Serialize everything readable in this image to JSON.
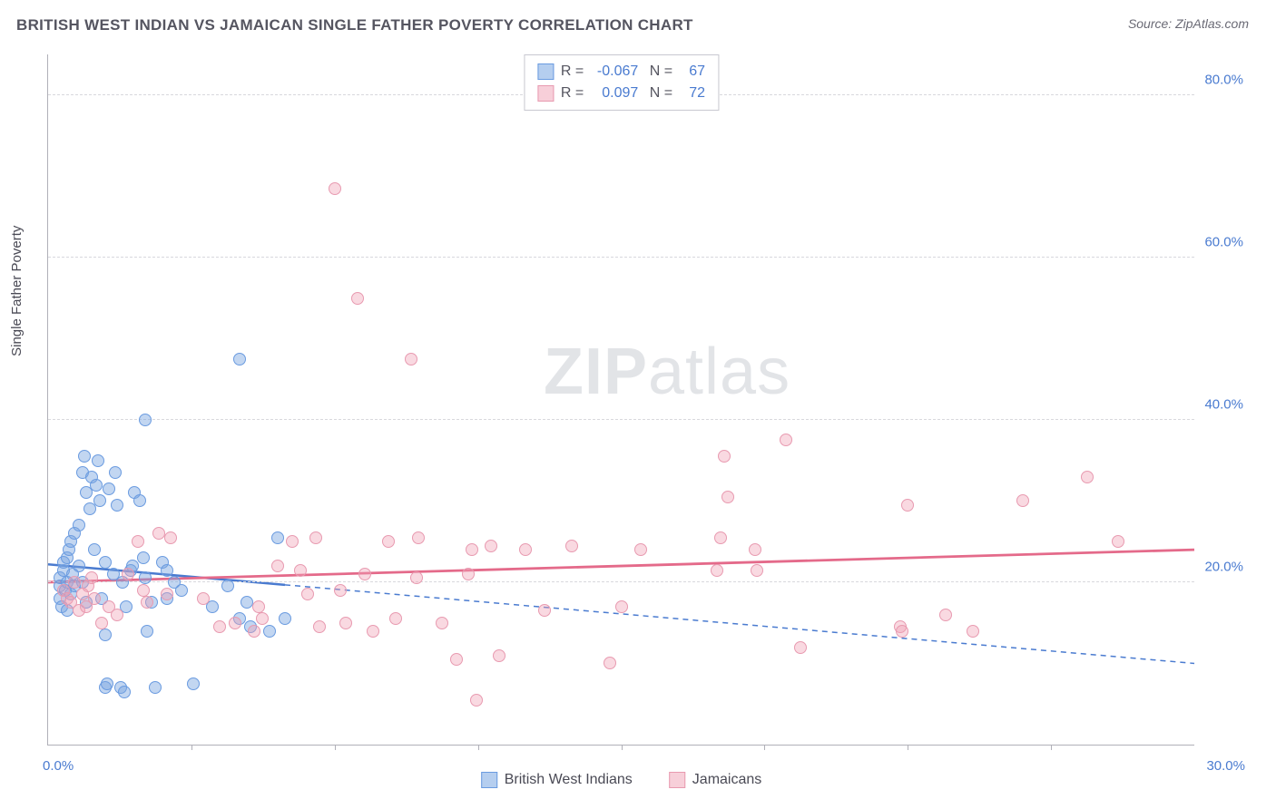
{
  "title": "BRITISH WEST INDIAN VS JAMAICAN SINGLE FATHER POVERTY CORRELATION CHART",
  "source": "Source: ZipAtlas.com",
  "ylabel": "Single Father Poverty",
  "watermark_a": "ZIP",
  "watermark_b": "atlas",
  "chart": {
    "type": "scatter",
    "xlim": [
      0,
      30
    ],
    "ylim": [
      0,
      85
    ],
    "xticks": [
      0,
      30
    ],
    "xtick_labels": [
      "0.0%",
      "30.0%"
    ],
    "x_minor_ticks": [
      3.75,
      7.5,
      11.25,
      15,
      18.75,
      22.5,
      26.25
    ],
    "yticks": [
      20,
      40,
      60,
      80
    ],
    "ytick_labels": [
      "20.0%",
      "40.0%",
      "60.0%",
      "80.0%"
    ],
    "background_color": "#ffffff",
    "grid_color": "#d8d8dd",
    "axis_color": "#b0b0b8",
    "label_color": "#4a7bd0",
    "series": [
      {
        "name": "British West Indians",
        "fill": "rgba(120,165,225,0.45)",
        "stroke": "#6a9be0",
        "r_value": "-0.067",
        "n_value": "67",
        "trend": {
          "x1": 0,
          "y1": 22.2,
          "x2": 30,
          "y2": 10.0,
          "solid_until_x": 6.2,
          "stroke": "#4a7bd0",
          "width": 2.5
        },
        "points": [
          [
            0.3,
            18.0
          ],
          [
            0.3,
            19.5
          ],
          [
            0.3,
            20.5
          ],
          [
            0.35,
            17.0
          ],
          [
            0.4,
            21.5
          ],
          [
            0.4,
            22.5
          ],
          [
            0.45,
            19.0
          ],
          [
            0.5,
            20.0
          ],
          [
            0.5,
            16.5
          ],
          [
            0.5,
            23.0
          ],
          [
            0.55,
            24.0
          ],
          [
            0.6,
            18.5
          ],
          [
            0.6,
            25.0
          ],
          [
            0.65,
            21.0
          ],
          [
            0.7,
            19.5
          ],
          [
            0.7,
            26.0
          ],
          [
            0.8,
            22.0
          ],
          [
            0.8,
            27.0
          ],
          [
            0.9,
            20.0
          ],
          [
            0.9,
            33.5
          ],
          [
            0.95,
            35.5
          ],
          [
            1.0,
            31.0
          ],
          [
            1.0,
            17.5
          ],
          [
            1.1,
            29.0
          ],
          [
            1.15,
            33.0
          ],
          [
            1.2,
            24.0
          ],
          [
            1.25,
            32.0
          ],
          [
            1.3,
            35.0
          ],
          [
            1.35,
            30.0
          ],
          [
            1.4,
            18.0
          ],
          [
            1.5,
            22.5
          ],
          [
            1.5,
            13.5
          ],
          [
            1.5,
            7.0
          ],
          [
            1.55,
            7.5
          ],
          [
            1.6,
            31.5
          ],
          [
            1.7,
            21.0
          ],
          [
            1.75,
            33.5
          ],
          [
            1.8,
            29.5
          ],
          [
            1.9,
            7.0
          ],
          [
            1.95,
            20.0
          ],
          [
            2.0,
            6.5
          ],
          [
            2.05,
            17.0
          ],
          [
            2.15,
            21.5
          ],
          [
            2.2,
            22.0
          ],
          [
            2.25,
            31.0
          ],
          [
            2.4,
            30.0
          ],
          [
            2.5,
            23.0
          ],
          [
            2.55,
            20.5
          ],
          [
            2.55,
            40.0
          ],
          [
            2.6,
            14.0
          ],
          [
            2.7,
            17.5
          ],
          [
            2.8,
            7.0
          ],
          [
            3.0,
            22.5
          ],
          [
            3.1,
            21.5
          ],
          [
            3.1,
            18.0
          ],
          [
            3.3,
            20.0
          ],
          [
            3.5,
            19.0
          ],
          [
            3.8,
            7.5
          ],
          [
            4.3,
            17.0
          ],
          [
            4.7,
            19.5
          ],
          [
            5.0,
            47.5
          ],
          [
            5.0,
            15.5
          ],
          [
            5.2,
            17.5
          ],
          [
            5.3,
            14.5
          ],
          [
            5.8,
            14.0
          ],
          [
            6.0,
            25.5
          ],
          [
            6.2,
            15.5
          ]
        ]
      },
      {
        "name": "Jamaicans",
        "fill": "rgba(240,160,180,0.40)",
        "stroke": "#e89ab0",
        "r_value": "0.097",
        "n_value": "72",
        "trend": {
          "x1": 0,
          "y1": 20.0,
          "x2": 30,
          "y2": 24.0,
          "solid_until_x": 30,
          "stroke": "#e46a8a",
          "width": 2.8
        },
        "points": [
          [
            0.4,
            19.0
          ],
          [
            0.5,
            18.0
          ],
          [
            0.6,
            17.5
          ],
          [
            0.7,
            20.0
          ],
          [
            0.8,
            16.5
          ],
          [
            0.9,
            18.5
          ],
          [
            1.0,
            17.0
          ],
          [
            1.05,
            19.5
          ],
          [
            1.15,
            20.5
          ],
          [
            1.2,
            18.0
          ],
          [
            1.4,
            15.0
          ],
          [
            1.6,
            17.0
          ],
          [
            1.8,
            16.0
          ],
          [
            2.1,
            21.0
          ],
          [
            2.35,
            25.0
          ],
          [
            2.5,
            19.0
          ],
          [
            2.6,
            17.5
          ],
          [
            2.9,
            26.0
          ],
          [
            3.1,
            18.5
          ],
          [
            3.2,
            25.5
          ],
          [
            4.05,
            18.0
          ],
          [
            4.5,
            14.5
          ],
          [
            4.9,
            15.0
          ],
          [
            5.4,
            14.0
          ],
          [
            5.5,
            17.0
          ],
          [
            5.6,
            15.5
          ],
          [
            6.0,
            22.0
          ],
          [
            6.4,
            25.0
          ],
          [
            6.6,
            21.5
          ],
          [
            6.8,
            18.5
          ],
          [
            7.0,
            25.5
          ],
          [
            7.1,
            14.5
          ],
          [
            7.5,
            68.5
          ],
          [
            7.65,
            19.0
          ],
          [
            7.8,
            15.0
          ],
          [
            8.1,
            55.0
          ],
          [
            8.3,
            21.0
          ],
          [
            8.5,
            14.0
          ],
          [
            8.9,
            25.0
          ],
          [
            9.1,
            15.5
          ],
          [
            9.5,
            47.5
          ],
          [
            9.65,
            20.5
          ],
          [
            9.7,
            25.5
          ],
          [
            10.3,
            15.0
          ],
          [
            10.7,
            10.5
          ],
          [
            11.0,
            21.0
          ],
          [
            11.1,
            24.0
          ],
          [
            11.2,
            5.5
          ],
          [
            11.6,
            24.5
          ],
          [
            11.8,
            11.0
          ],
          [
            12.5,
            24.0
          ],
          [
            13.0,
            16.5
          ],
          [
            13.7,
            24.5
          ],
          [
            14.7,
            10.0
          ],
          [
            15.0,
            17.0
          ],
          [
            15.5,
            24.0
          ],
          [
            17.5,
            21.5
          ],
          [
            17.6,
            25.5
          ],
          [
            17.7,
            35.5
          ],
          [
            17.8,
            30.5
          ],
          [
            18.5,
            24.0
          ],
          [
            18.55,
            21.5
          ],
          [
            19.3,
            37.5
          ],
          [
            19.7,
            12.0
          ],
          [
            22.3,
            14.5
          ],
          [
            22.35,
            14.0
          ],
          [
            22.5,
            29.5
          ],
          [
            23.5,
            16.0
          ],
          [
            24.2,
            14.0
          ],
          [
            25.5,
            30.0
          ],
          [
            27.2,
            33.0
          ],
          [
            28.0,
            25.0
          ]
        ]
      }
    ]
  },
  "legend": {
    "items": [
      {
        "label": "British West Indians",
        "fill": "rgba(120,165,225,0.55)",
        "stroke": "#6a9be0"
      },
      {
        "label": "Jamaicans",
        "fill": "rgba(240,160,180,0.50)",
        "stroke": "#e89ab0"
      }
    ]
  }
}
